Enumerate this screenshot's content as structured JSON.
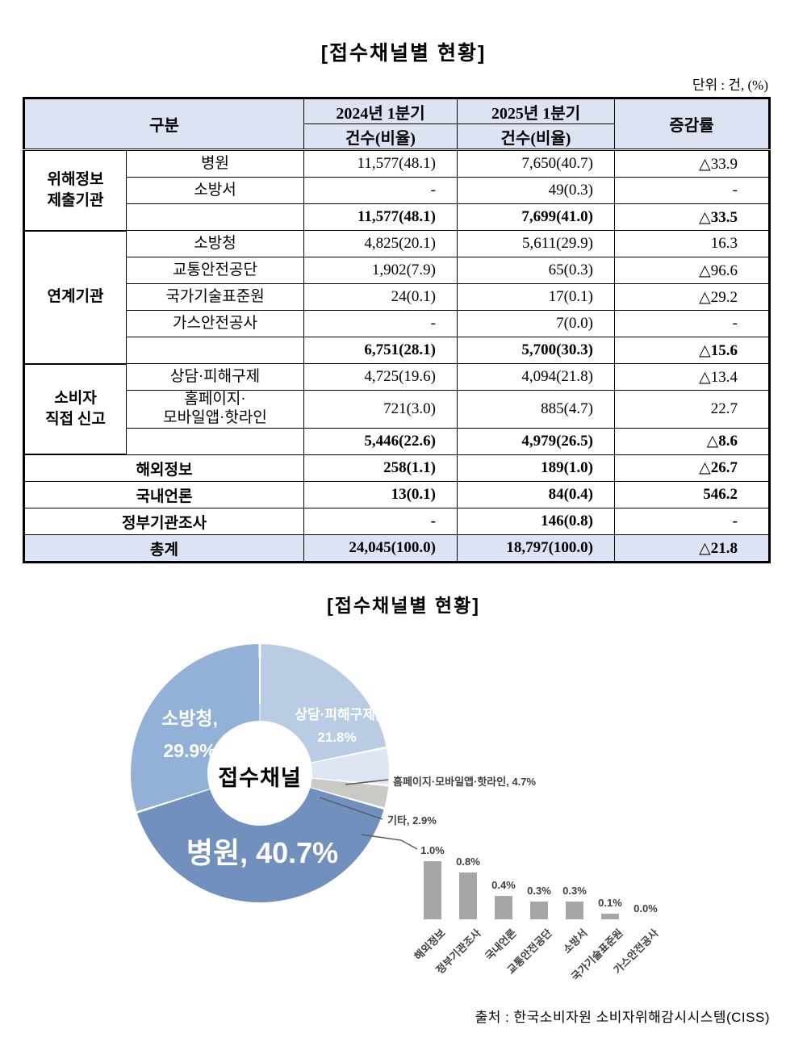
{
  "page": {
    "table_title": "[접수채널별 현황]",
    "unit_label": "단위 : 건, (%)",
    "chart_title": "[접수채널별 현황]",
    "source": "출처 : 한국소비자원 소비자위해감시시스템(CISS)"
  },
  "table": {
    "header": {
      "category": "구분",
      "q2024_label": "2024년 1분기",
      "q2025_label": "2025년 1분기",
      "count_label": "건수(비율)",
      "change_label": "증감률"
    },
    "groups": [
      {
        "name": "위해정보\n제출기관",
        "items": [
          {
            "label": "병원",
            "v2024": "11,577(48.1)",
            "v2025": "7,650(40.7)",
            "change": "△33.9"
          },
          {
            "label": "소방서",
            "v2024": "-",
            "v2025": "49(0.3)",
            "change": "-"
          }
        ],
        "subtotal": {
          "v2024": "11,577(48.1)",
          "v2025": "7,699(41.0)",
          "change": "△33.5"
        }
      },
      {
        "name": "연계기관",
        "items": [
          {
            "label": "소방청",
            "v2024": "4,825(20.1)",
            "v2025": "5,611(29.9)",
            "change": "16.3"
          },
          {
            "label": "교통안전공단",
            "v2024": "1,902(7.9)",
            "v2025": "65(0.3)",
            "change": "△96.6"
          },
          {
            "label": "국가기술표준원",
            "v2024": "24(0.1)",
            "v2025": "17(0.1)",
            "change": "△29.2"
          },
          {
            "label": "가스안전공사",
            "v2024": "-",
            "v2025": "7(0.0)",
            "change": "-"
          }
        ],
        "subtotal": {
          "v2024": "6,751(28.1)",
          "v2025": "5,700(30.3)",
          "change": "△15.6"
        }
      },
      {
        "name": "소비자\n직접 신고",
        "items": [
          {
            "label": "상담·피해구제",
            "v2024": "4,725(19.6)",
            "v2025": "4,094(21.8)",
            "change": "△13.4"
          },
          {
            "label": "홈페이지·\n모바일앱·핫라인",
            "v2024": "721(3.0)",
            "v2025": "885(4.7)",
            "change": "22.7"
          }
        ],
        "subtotal": {
          "v2024": "5,446(22.6)",
          "v2025": "4,979(26.5)",
          "change": "△8.6"
        }
      }
    ],
    "single_rows": [
      {
        "label": "해외정보",
        "v2024": "258(1.1)",
        "v2025": "189(1.0)",
        "change": "△26.7"
      },
      {
        "label": "국내언론",
        "v2024": "13(0.1)",
        "v2025": "84(0.4)",
        "change": "546.2"
      },
      {
        "label": "정부기관조사",
        "v2024": "-",
        "v2025": "146(0.8)",
        "change": "-"
      }
    ],
    "total_row": {
      "label": "총계",
      "v2024": "24,045(100.0)",
      "v2025": "18,797(100.0)",
      "change": "△21.8"
    }
  },
  "chart_data": [
    {
      "type": "pie",
      "title": "[접수채널별 현황]",
      "center_label": "접수채널",
      "direction": "clockwise",
      "start_angle_deg": 0,
      "slices": [
        {
          "name": "상담·피해구제",
          "value": 21.8,
          "color": "#b9cce4"
        },
        {
          "name": "홈페이지·모바일앱·핫라인",
          "value": 4.7,
          "color": "#dde6f2"
        },
        {
          "name": "기타",
          "value": 2.9,
          "color": "#c9c9c6"
        },
        {
          "name": "병원",
          "value": 40.7,
          "color": "#7190be"
        },
        {
          "name": "소방청",
          "value": 29.9,
          "color": "#93b0d6"
        }
      ],
      "labels": {
        "fire_line1": "소방청,",
        "fire_line2": "29.9%",
        "counsel_line1": "상담·피해구제,",
        "counsel_line2": "21.8%",
        "hospital": "병원, 40.7%",
        "center": "접수채널",
        "homepage_callout": "홈페이지·모바일앱·핫라인, 4.7%",
        "etc_callout": "기타, 2.9%"
      }
    },
    {
      "type": "bar",
      "categories": [
        "해외정보",
        "정부기관조사",
        "국내언론",
        "교통안전공단",
        "소방서",
        "국가기술표준원",
        "가스안전공사"
      ],
      "values": [
        1.0,
        0.8,
        0.4,
        0.3,
        0.3,
        0.1,
        0.0
      ],
      "value_labels": [
        "1.0%",
        "0.8%",
        "0.4%",
        "0.3%",
        "0.3%",
        "0.1%",
        "0.0%"
      ],
      "bar_color": "#a6a6a6",
      "ylim": [
        0,
        1.0
      ],
      "grid": false,
      "legend": "none"
    }
  ]
}
